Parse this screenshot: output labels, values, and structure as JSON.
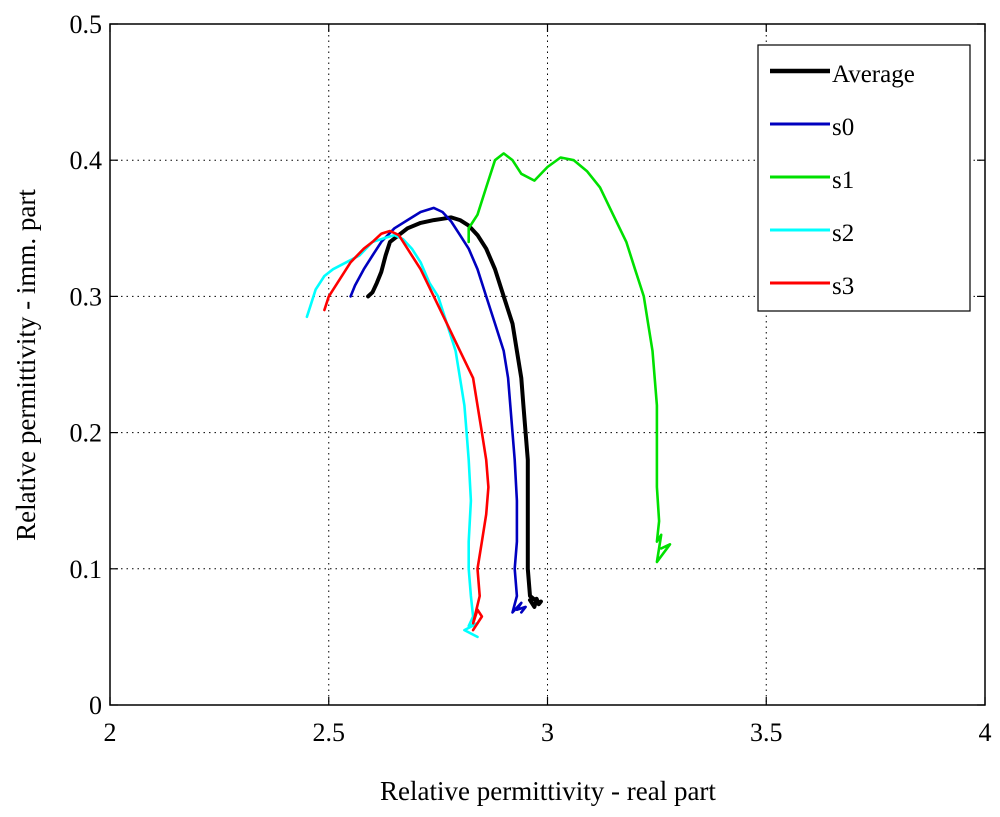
{
  "chart_data": {
    "type": "line",
    "title": "",
    "xlabel": "Relative permittivity - real part",
    "ylabel": "Relative permittivity - imm. part",
    "xlim": [
      2,
      4
    ],
    "ylim": [
      0,
      0.5
    ],
    "xticks": [
      2,
      2.5,
      3,
      3.5,
      4
    ],
    "yticks": [
      0,
      0.1,
      0.2,
      0.3,
      0.4,
      0.5
    ],
    "xtick_labels": [
      "2",
      "2.5",
      "3",
      "3.5",
      "4"
    ],
    "ytick_labels": [
      "0",
      "0.1",
      "0.2",
      "0.3",
      "0.4",
      "0.5"
    ],
    "grid": true,
    "legend_position": "top-right",
    "series": [
      {
        "name": "Average",
        "color": "#000000",
        "line": "thick",
        "x": [
          2.96,
          2.97,
          2.975,
          2.98,
          2.985,
          2.98,
          2.96,
          2.955,
          2.955,
          2.955,
          2.955,
          2.95,
          2.945,
          2.94,
          2.93,
          2.92,
          2.9,
          2.88,
          2.86,
          2.84,
          2.82,
          2.8,
          2.78,
          2.76,
          2.74,
          2.71,
          2.68,
          2.66,
          2.64,
          2.63,
          2.62,
          2.61,
          2.6,
          2.59
        ],
        "y": [
          0.077,
          0.072,
          0.078,
          0.074,
          0.076,
          0.075,
          0.08,
          0.1,
          0.13,
          0.16,
          0.18,
          0.2,
          0.22,
          0.24,
          0.26,
          0.28,
          0.3,
          0.32,
          0.335,
          0.345,
          0.352,
          0.356,
          0.358,
          0.357,
          0.356,
          0.354,
          0.35,
          0.345,
          0.34,
          0.33,
          0.318,
          0.31,
          0.303,
          0.3
        ]
      },
      {
        "name": "s0",
        "color": "#0000bf",
        "line": "normal",
        "x": [
          2.94,
          2.95,
          2.93,
          2.94,
          2.92,
          2.93,
          2.925,
          2.93,
          2.93,
          2.925,
          2.92,
          2.915,
          2.91,
          2.9,
          2.88,
          2.86,
          2.84,
          2.82,
          2.8,
          2.78,
          2.76,
          2.74,
          2.71,
          2.68,
          2.65,
          2.62,
          2.6,
          2.58,
          2.56,
          2.55
        ],
        "y": [
          0.068,
          0.072,
          0.07,
          0.075,
          0.068,
          0.08,
          0.1,
          0.12,
          0.15,
          0.18,
          0.2,
          0.22,
          0.24,
          0.26,
          0.28,
          0.3,
          0.32,
          0.335,
          0.345,
          0.355,
          0.362,
          0.365,
          0.362,
          0.356,
          0.35,
          0.34,
          0.33,
          0.32,
          0.308,
          0.3
        ]
      },
      {
        "name": "s1",
        "color": "#00e000",
        "line": "normal",
        "x": [
          3.26,
          3.28,
          3.25,
          3.26,
          3.25,
          3.255,
          3.25,
          3.25,
          3.25,
          3.245,
          3.24,
          3.23,
          3.22,
          3.2,
          3.18,
          3.15,
          3.12,
          3.09,
          3.06,
          3.03,
          3.0,
          2.97,
          2.94,
          2.92,
          2.9,
          2.88,
          2.86,
          2.84,
          2.83,
          2.82,
          2.82
        ],
        "y": [
          0.115,
          0.118,
          0.105,
          0.125,
          0.12,
          0.135,
          0.16,
          0.2,
          0.22,
          0.24,
          0.26,
          0.28,
          0.3,
          0.32,
          0.34,
          0.36,
          0.38,
          0.392,
          0.4,
          0.402,
          0.395,
          0.385,
          0.39,
          0.4,
          0.405,
          0.4,
          0.38,
          0.36,
          0.355,
          0.35,
          0.34
        ]
      },
      {
        "name": "s2",
        "color": "#00ffff",
        "line": "normal",
        "x": [
          2.84,
          2.81,
          2.84,
          2.82,
          2.83,
          2.825,
          2.82,
          2.82,
          2.825,
          2.82,
          2.815,
          2.81,
          2.8,
          2.79,
          2.77,
          2.75,
          2.73,
          2.71,
          2.69,
          2.67,
          2.65,
          2.63,
          2.6,
          2.57,
          2.54,
          2.51,
          2.49,
          2.47,
          2.46,
          2.45
        ],
        "y": [
          0.05,
          0.055,
          0.06,
          0.058,
          0.065,
          0.08,
          0.1,
          0.12,
          0.15,
          0.18,
          0.2,
          0.22,
          0.24,
          0.26,
          0.28,
          0.3,
          0.31,
          0.325,
          0.335,
          0.342,
          0.345,
          0.343,
          0.34,
          0.33,
          0.325,
          0.32,
          0.315,
          0.305,
          0.295,
          0.285
        ]
      },
      {
        "name": "s3",
        "color": "#ff0000",
        "line": "normal",
        "x": [
          2.83,
          2.85,
          2.84,
          2.83,
          2.845,
          2.84,
          2.85,
          2.86,
          2.865,
          2.86,
          2.85,
          2.84,
          2.83,
          2.8,
          2.77,
          2.74,
          2.71,
          2.68,
          2.66,
          2.64,
          2.62,
          2.6,
          2.58,
          2.55,
          2.52,
          2.5,
          2.49
        ],
        "y": [
          0.055,
          0.065,
          0.07,
          0.06,
          0.08,
          0.1,
          0.12,
          0.14,
          0.16,
          0.18,
          0.2,
          0.22,
          0.24,
          0.26,
          0.28,
          0.3,
          0.32,
          0.335,
          0.345,
          0.348,
          0.346,
          0.34,
          0.335,
          0.325,
          0.31,
          0.3,
          0.29
        ]
      }
    ]
  }
}
